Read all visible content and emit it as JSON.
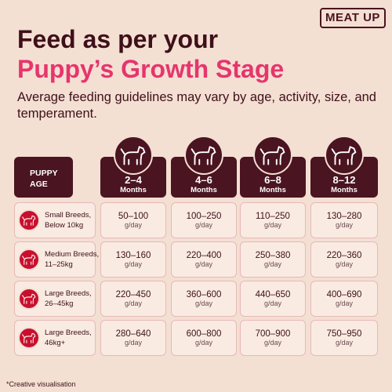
{
  "brand": "MEAT UP",
  "title": {
    "line1": "Feed as per your",
    "line2": "Puppy’s Growth Stage"
  },
  "subtitle": "Average feeding guidelines may vary by age, activity, size, and temperament.",
  "table": {
    "corner": "PUPPY AGE",
    "columns": [
      {
        "range": "2–4",
        "unit": "Months"
      },
      {
        "range": "4–6",
        "unit": "Months"
      },
      {
        "range": "6–8",
        "unit": "Months"
      },
      {
        "range": "8–12",
        "unit": "Months"
      }
    ],
    "rows": [
      {
        "lines": [
          "Small Breeds,",
          "Below 10kg"
        ],
        "cells": [
          {
            "amount": "50–100",
            "unit": "g/day"
          },
          {
            "amount": "100–250",
            "unit": "g/day"
          },
          {
            "amount": "110–250",
            "unit": "g/day"
          },
          {
            "amount": "130–280",
            "unit": "g/day"
          }
        ]
      },
      {
        "lines": [
          "Medium Breeds,",
          "11–25kg"
        ],
        "cells": [
          {
            "amount": "130–160",
            "unit": "g/day"
          },
          {
            "amount": "220–400",
            "unit": "g/day"
          },
          {
            "amount": "250–380",
            "unit": "g/day"
          },
          {
            "amount": "220–360",
            "unit": "g/day"
          }
        ]
      },
      {
        "lines": [
          "Large Breeds,",
          "26–45kg"
        ],
        "cells": [
          {
            "amount": "220–450",
            "unit": "g/day"
          },
          {
            "amount": "360–600",
            "unit": "g/day"
          },
          {
            "amount": "440–650",
            "unit": "g/day"
          },
          {
            "amount": "400–690",
            "unit": "g/day"
          }
        ]
      },
      {
        "lines": [
          "Large Breeds,",
          "46kg+"
        ],
        "cells": [
          {
            "amount": "280–640",
            "unit": "g/day"
          },
          {
            "amount": "600–800",
            "unit": "g/day"
          },
          {
            "amount": "700–900",
            "unit": "g/day"
          },
          {
            "amount": "750–950",
            "unit": "g/day"
          }
        ]
      }
    ]
  },
  "footnote": "*Creative visualisation"
}
